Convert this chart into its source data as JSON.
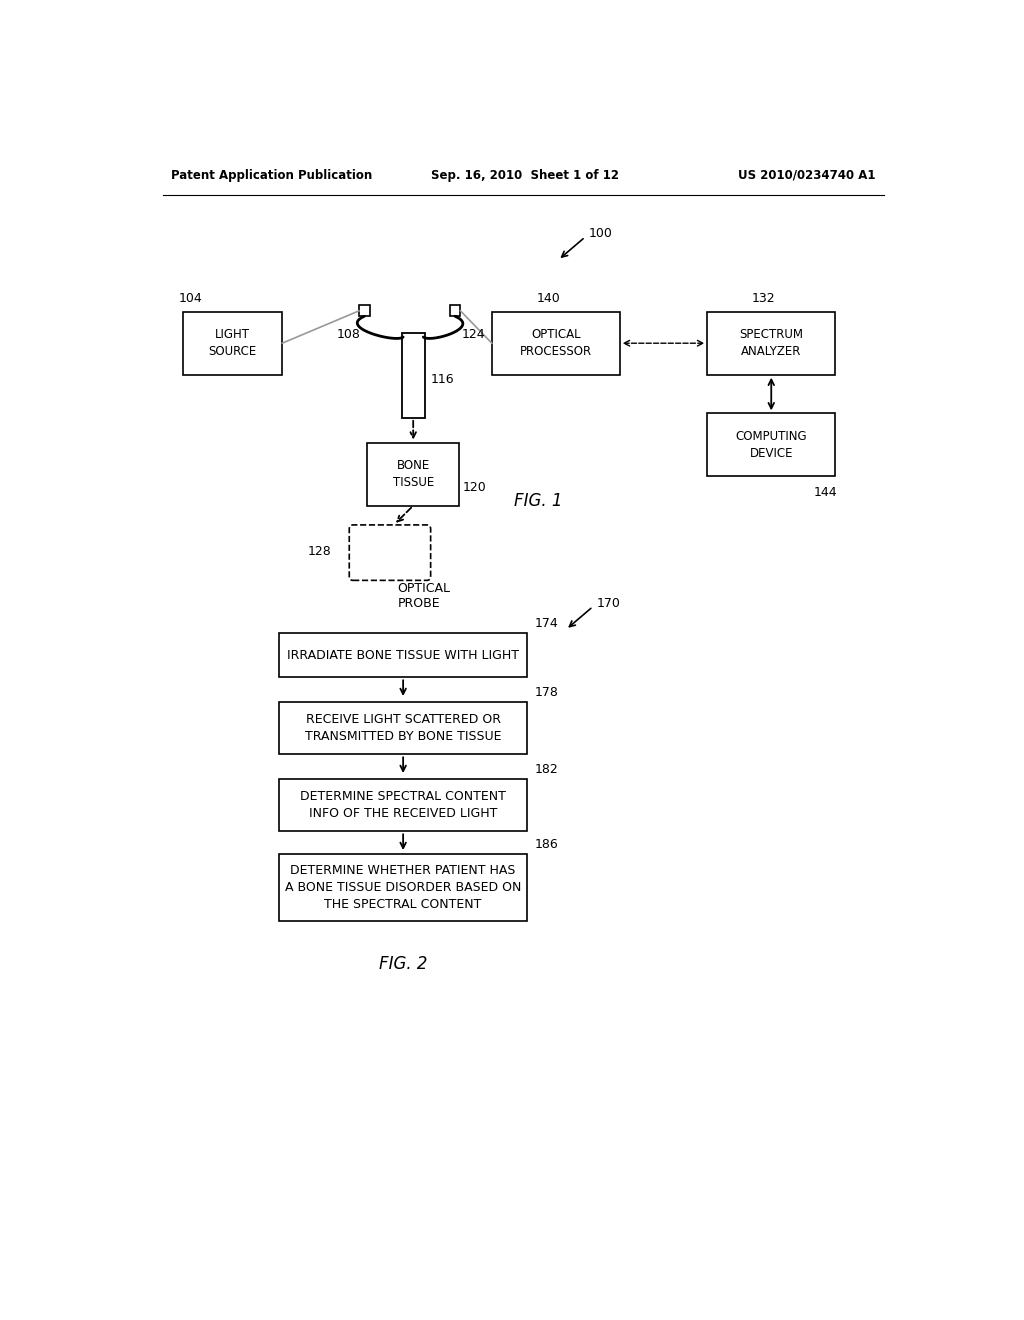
{
  "bg_color": "#ffffff",
  "header_left": "Patent Application Publication",
  "header_mid": "Sep. 16, 2010  Sheet 1 of 12",
  "header_right": "US 2010/0234740 A1",
  "fig1_label": "FIG. 1",
  "fig2_label": "FIG. 2",
  "ref_100": "100",
  "ref_104": "104",
  "ref_108": "108",
  "ref_116": "116",
  "ref_120": "120",
  "ref_124": "124",
  "ref_128": "128",
  "ref_132": "132",
  "ref_140": "140",
  "ref_144": "144",
  "ref_170": "170",
  "ref_174": "174",
  "ref_178": "178",
  "ref_182": "182",
  "ref_186": "186",
  "light_source_text": "LIGHT\nSOURCE",
  "optical_processor_text": "OPTICAL\nPROCESSOR",
  "spectrum_analyzer_text": "SPECTRUM\nANALYZER",
  "computing_device_text": "COMPUTING\nDEVICE",
  "bone_tissue_text": "BONE\nTISSUE",
  "optical_probe_text": "OPTICAL\nPROBE",
  "flow1_text": "IRRADIATE BONE TISSUE WITH LIGHT",
  "flow2_text": "RECEIVE LIGHT SCATTERED OR\nTRANSMITTED BY BONE TISSUE",
  "flow3_text": "DETERMINE SPECTRAL CONTENT\nINFO OF THE RECEIVED LIGHT",
  "flow4_text": "DETERMINE WHETHER PATIENT HAS\nA BONE TISSUE DISORDER BASED ON\nTHE SPECTRAL CONTENT",
  "page_width": 10.24,
  "page_height": 13.2
}
